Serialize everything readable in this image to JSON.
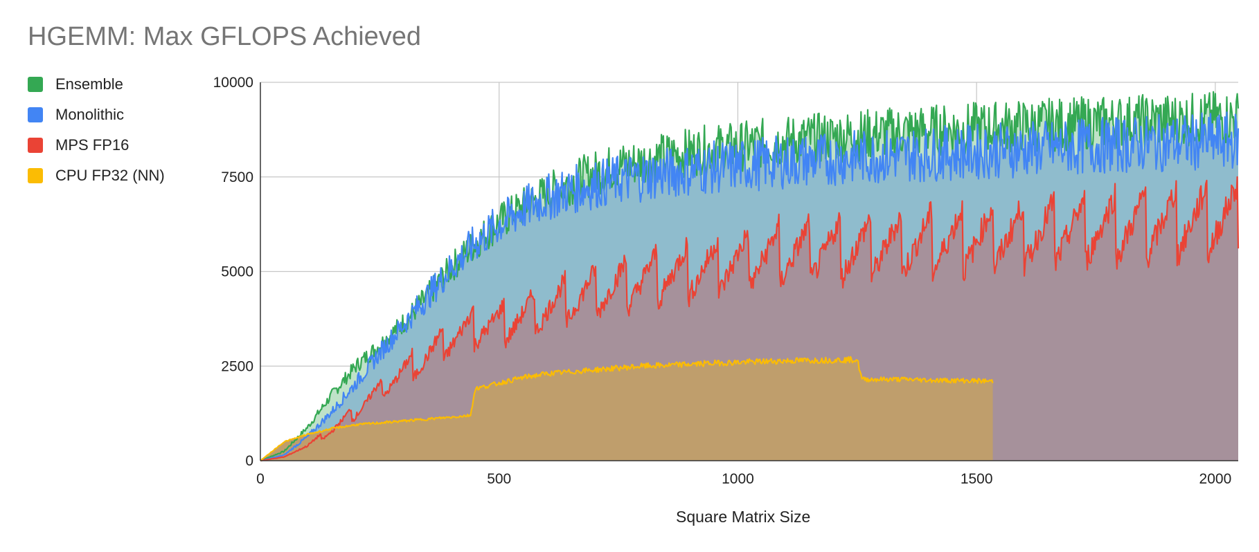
{
  "chart_data": {
    "type": "area",
    "title": "HGEMM: Max GFLOPS Achieved",
    "xlabel": "Square Matrix Size",
    "ylabel": "",
    "xlim": [
      0,
      2048
    ],
    "ylim": [
      0,
      10000
    ],
    "x_ticks": [
      0,
      500,
      1000,
      1500,
      2000
    ],
    "y_ticks": [
      0,
      2500,
      5000,
      7500,
      10000
    ],
    "x_tick_labels": [
      "0",
      "500",
      "1000",
      "1500",
      "2000"
    ],
    "y_tick_labels": [
      "0",
      "2500",
      "5000",
      "7500",
      "10000"
    ],
    "grid": true,
    "legend_position": "left",
    "series": [
      {
        "name": "Ensemble",
        "color": "#34a853",
        "x": [
          0,
          50,
          100,
          150,
          200,
          250,
          300,
          350,
          400,
          450,
          500,
          550,
          600,
          650,
          700,
          750,
          800,
          850,
          900,
          950,
          1000,
          1050,
          1100,
          1150,
          1200,
          1250,
          1300,
          1350,
          1400,
          1450,
          1500,
          1550,
          1600,
          1650,
          1700,
          1750,
          1800,
          1850,
          1900,
          1950,
          2000,
          2048
        ],
        "y": [
          0,
          250,
          900,
          1750,
          2500,
          3050,
          3650,
          4350,
          5100,
          5750,
          6300,
          6700,
          7050,
          7350,
          7600,
          7800,
          7900,
          8050,
          8150,
          8250,
          8300,
          8380,
          8450,
          8500,
          8550,
          8600,
          8650,
          8700,
          8720,
          8750,
          8780,
          8820,
          8850,
          8880,
          8900,
          8930,
          8960,
          8980,
          9000,
          9020,
          9050,
          9070
        ]
      },
      {
        "name": "Monolithic",
        "color": "#4285f4",
        "x": [
          0,
          50,
          100,
          150,
          200,
          250,
          300,
          350,
          400,
          450,
          500,
          550,
          600,
          650,
          700,
          750,
          800,
          850,
          900,
          950,
          1000,
          1050,
          1100,
          1150,
          1200,
          1250,
          1300,
          1350,
          1400,
          1450,
          1500,
          1550,
          1600,
          1650,
          1700,
          1750,
          1800,
          1850,
          1900,
          1950,
          2000,
          2048
        ],
        "y": [
          0,
          150,
          650,
          1300,
          2050,
          2850,
          3600,
          4350,
          5100,
          5750,
          6250,
          6650,
          6950,
          7150,
          7300,
          7420,
          7520,
          7600,
          7680,
          7750,
          7800,
          7850,
          7900,
          7940,
          7980,
          8020,
          8050,
          8080,
          8110,
          8140,
          8170,
          8200,
          8230,
          8260,
          8290,
          8320,
          8350,
          8380,
          8400,
          8420,
          8440,
          8460
        ]
      },
      {
        "name": "MPS FP16",
        "color": "#ea4335",
        "x": [
          0,
          50,
          100,
          150,
          200,
          250,
          300,
          350,
          400,
          450,
          500,
          550,
          600,
          650,
          700,
          750,
          800,
          850,
          900,
          950,
          1000,
          1050,
          1100,
          1150,
          1200,
          1250,
          1300,
          1350,
          1400,
          1450,
          1500,
          1550,
          1600,
          1650,
          1700,
          1750,
          1800,
          1850,
          1900,
          1950,
          2000,
          2048
        ],
        "y": [
          0,
          100,
          400,
          800,
          1300,
          1850,
          2300,
          2750,
          3200,
          3500,
          3550,
          3750,
          4000,
          4200,
          4400,
          4550,
          4700,
          4850,
          4950,
          5050,
          5200,
          5300,
          5400,
          5450,
          5500,
          5550,
          5600,
          5650,
          5700,
          5750,
          5800,
          5850,
          5900,
          5950,
          6000,
          6050,
          6100,
          6150,
          6200,
          6250,
          6300,
          6350
        ]
      },
      {
        "name": "CPU FP32 (NN)",
        "color": "#fbbc04",
        "x": [
          0,
          50,
          100,
          150,
          200,
          250,
          300,
          350,
          400,
          440,
          450,
          500,
          550,
          600,
          650,
          700,
          750,
          800,
          850,
          900,
          950,
          1000,
          1050,
          1100,
          1150,
          1200,
          1250,
          1260,
          1300,
          1350,
          1400,
          1450,
          1500,
          1535
        ],
        "y": [
          0,
          500,
          700,
          850,
          950,
          1000,
          1050,
          1100,
          1150,
          1200,
          1900,
          2050,
          2200,
          2300,
          2350,
          2400,
          2450,
          2500,
          2520,
          2550,
          2580,
          2600,
          2620,
          2640,
          2650,
          2660,
          2670,
          2150,
          2150,
          2150,
          2130,
          2120,
          2110,
          2100
        ]
      }
    ]
  }
}
